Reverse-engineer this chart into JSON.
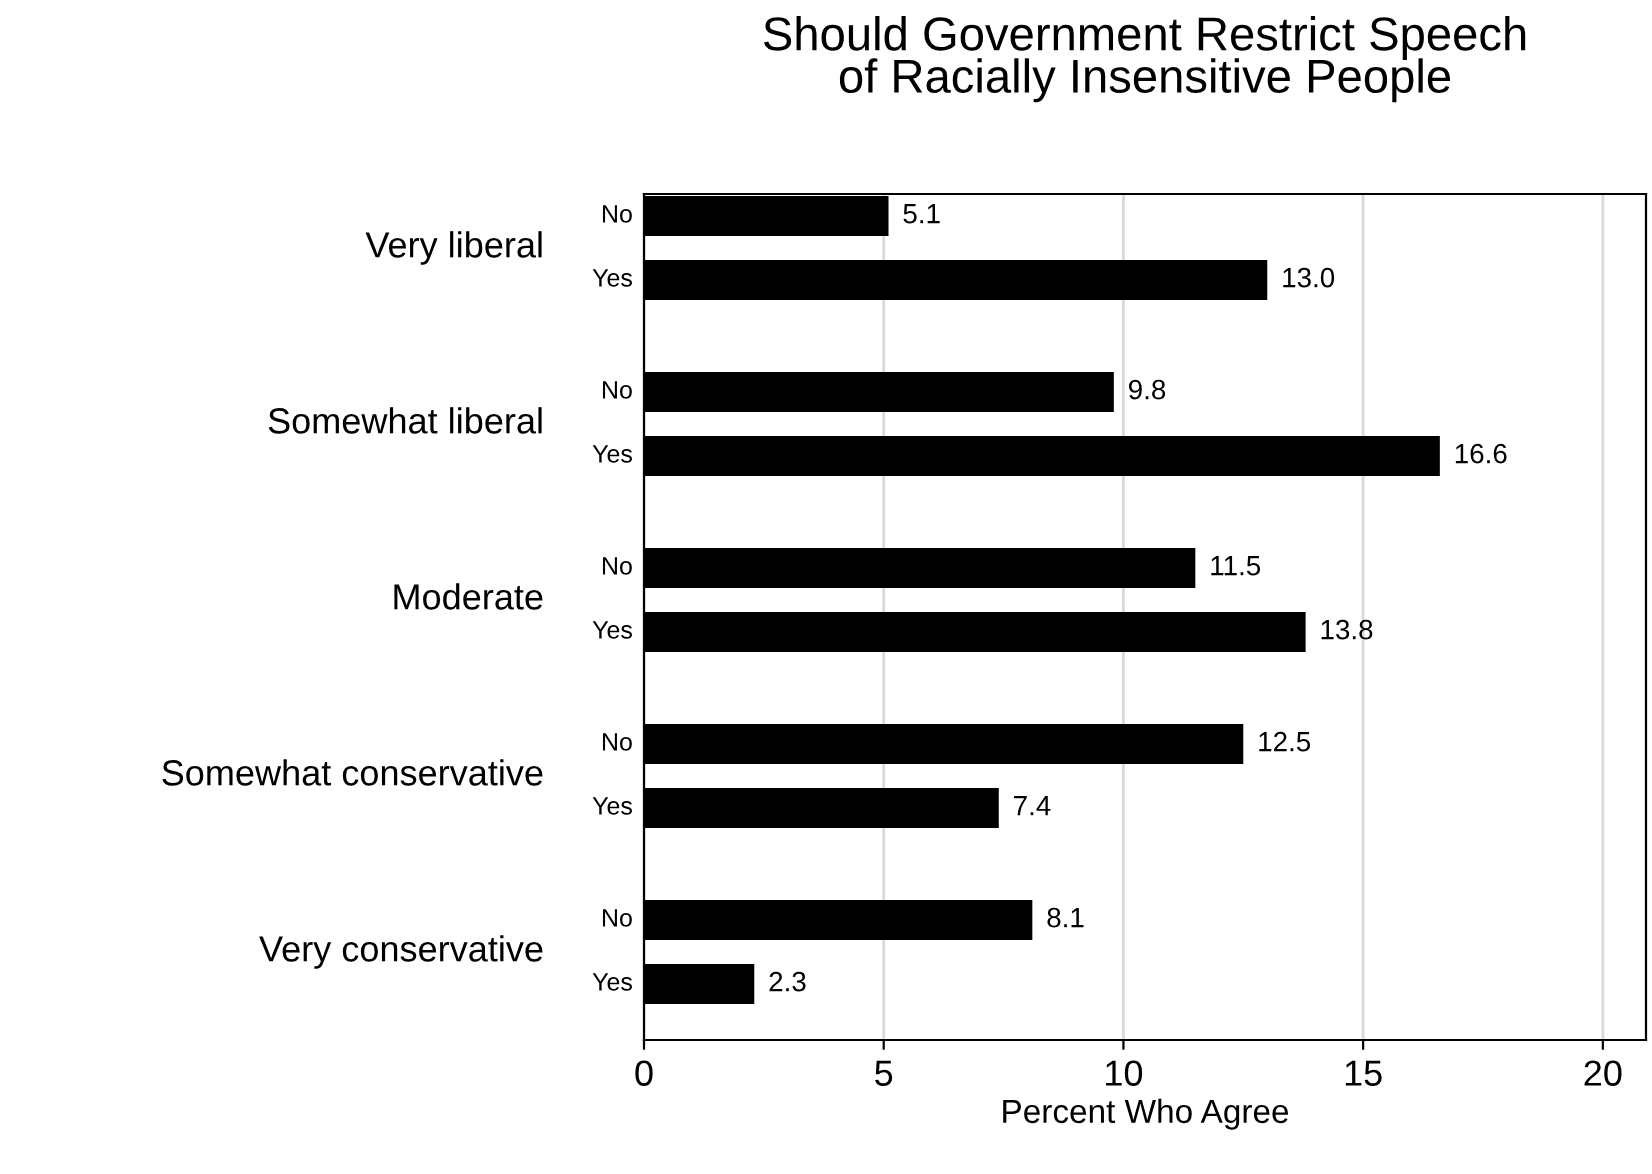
{
  "chart_data": {
    "type": "bar",
    "orientation": "horizontal",
    "title": "Should Government Restrict Speech\nof Racially Insensitive People",
    "xlabel": "Percent Who Agree",
    "categories": [
      "Very liberal",
      "Somewhat liberal",
      "Moderate",
      "Somewhat conservative",
      "Very conservative"
    ],
    "series": [
      {
        "name": "No",
        "color": "#000000",
        "values": [
          5.1,
          9.8,
          11.5,
          12.5,
          8.1
        ],
        "value_labels": [
          "5.1",
          "9.8",
          "11.5",
          "12.5",
          "8.1"
        ]
      },
      {
        "name": "Yes",
        "color": "#000000",
        "values": [
          13.0,
          16.6,
          13.8,
          7.4,
          2.3
        ],
        "value_labels": [
          "13.0",
          "16.6",
          "13.8",
          "7.4",
          "2.3"
        ]
      }
    ],
    "xlim": [
      0,
      20.9
    ],
    "xticks": [
      0,
      5,
      10,
      15,
      20
    ],
    "grid": "x",
    "legend": false
  }
}
